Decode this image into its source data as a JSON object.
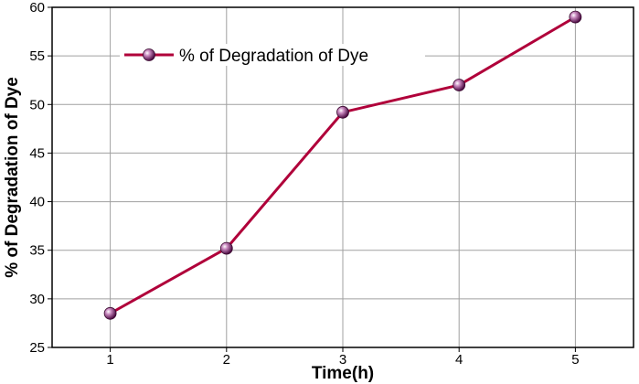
{
  "chart_data": {
    "type": "line",
    "xlabel": "Time(h)",
    "ylabel": "% of Degradation of Dye",
    "x": [
      1,
      2,
      3,
      4,
      5
    ],
    "xlim": [
      0.5,
      5.5
    ],
    "ylim": [
      25,
      60
    ],
    "xticks": [
      1,
      2,
      3,
      4,
      5
    ],
    "yticks": [
      25,
      30,
      35,
      40,
      45,
      50,
      55,
      60
    ],
    "grid": true,
    "legend_position": "top-left",
    "series": [
      {
        "name": "% of Degradation of Dye",
        "values": [
          28.5,
          35.2,
          49.2,
          52.0,
          59.0
        ],
        "color": "#b0003a",
        "marker_color": "#7a1f6e"
      }
    ]
  }
}
